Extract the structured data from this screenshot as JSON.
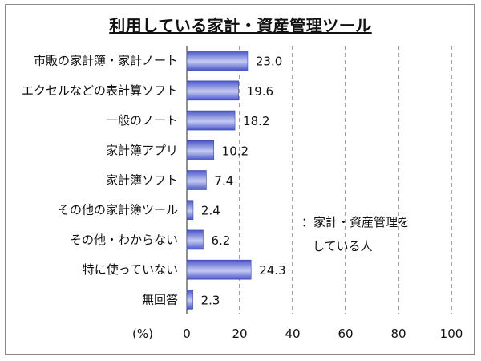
{
  "chart_data": {
    "type": "bar",
    "orientation": "horizontal",
    "title": "利用している家計・資産管理ツール",
    "categories": [
      "市販の家計簿・家計ノート",
      "エクセルなどの表計算ソフト",
      "一般のノート",
      "家計簿アプリ",
      "家計簿ソフト",
      "その他の家計簿ツール",
      "その他・わからない",
      "特に使っていない",
      "無回答"
    ],
    "values": [
      23.0,
      19.6,
      18.2,
      10.2,
      7.4,
      2.4,
      6.2,
      24.3,
      2.3
    ],
    "value_labels": [
      "23.0",
      "19.6",
      "18.2",
      "10.2",
      "7.4",
      "2.4",
      "6.2",
      "24.3",
      "2.3"
    ],
    "unit_label": "(%)",
    "xlim": [
      0,
      100
    ],
    "xticks": [
      "0",
      "20",
      "40",
      "60",
      "80",
      "100"
    ],
    "grid": "dashed vertical",
    "legend": {
      "prefix": "：",
      "line1": "家計・資産管理を",
      "line2": "している人"
    },
    "colors": {
      "bar_light": "#c5cbf3",
      "bar_dark": "#4a56c8",
      "bar_edge": "#3c46a8",
      "grid": "#444444"
    }
  }
}
